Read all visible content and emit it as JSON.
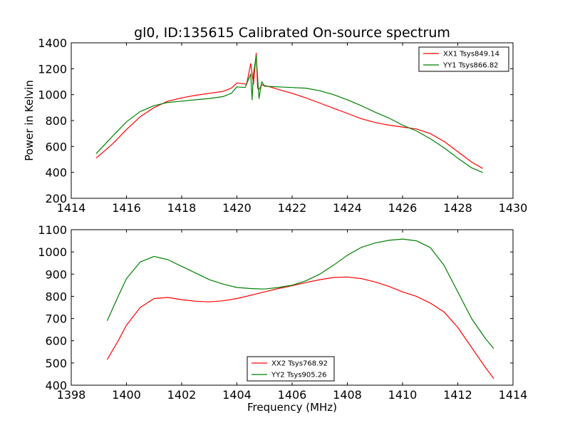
{
  "chart_data": [
    {
      "type": "line",
      "title": "gl0, ID:135615 Calibrated On-source spectrum",
      "xlabel": "",
      "ylabel": "Power in Kelvin",
      "xlim": [
        1414,
        1430
      ],
      "ylim": [
        200,
        1400
      ],
      "xticks": [
        1414,
        1416,
        1418,
        1420,
        1422,
        1424,
        1426,
        1428,
        1430
      ],
      "yticks": [
        200,
        400,
        600,
        800,
        1000,
        1200,
        1400
      ],
      "grid": false,
      "legend": "top-right",
      "series": [
        {
          "name": "XX1 Tsys849.14",
          "color": "#ff0000",
          "x": [
            1414.9,
            1415.5,
            1416.0,
            1416.5,
            1417.0,
            1417.5,
            1418.0,
            1418.5,
            1419.0,
            1419.5,
            1419.8,
            1420.0,
            1420.2,
            1420.35,
            1420.5,
            1420.6,
            1420.7,
            1420.75,
            1420.8,
            1420.9,
            1421.0,
            1421.2,
            1421.5,
            1422.0,
            1422.5,
            1423.0,
            1423.5,
            1424.0,
            1424.5,
            1425.0,
            1425.5,
            1426.0,
            1426.5,
            1427.0,
            1427.5,
            1428.0,
            1428.5,
            1428.9
          ],
          "values": [
            510,
            620,
            730,
            830,
            900,
            950,
            975,
            995,
            1010,
            1025,
            1050,
            1090,
            1085,
            1080,
            1240,
            1080,
            1320,
            1050,
            1040,
            1075,
            1070,
            1060,
            1040,
            1010,
            975,
            935,
            895,
            855,
            815,
            785,
            765,
            750,
            735,
            700,
            640,
            560,
            480,
            430
          ]
        },
        {
          "name": "YY1 Tsys866.82",
          "color": "#008000",
          "x": [
            1414.9,
            1415.5,
            1416.0,
            1416.5,
            1417.0,
            1417.5,
            1418.0,
            1418.5,
            1419.0,
            1419.5,
            1419.8,
            1420.0,
            1420.3,
            1420.5,
            1420.55,
            1420.6,
            1420.7,
            1420.8,
            1420.9,
            1421.0,
            1421.5,
            1422.0,
            1422.5,
            1423.0,
            1423.5,
            1424.0,
            1424.5,
            1425.0,
            1425.5,
            1426.0,
            1426.5,
            1427.0,
            1427.5,
            1428.0,
            1428.5,
            1428.9
          ],
          "values": [
            545,
            680,
            790,
            870,
            915,
            940,
            950,
            960,
            970,
            985,
            1010,
            1060,
            1055,
            1160,
            960,
            1160,
            1300,
            970,
            1100,
            1065,
            1060,
            1055,
            1050,
            1030,
            1000,
            960,
            915,
            865,
            820,
            765,
            720,
            660,
            590,
            510,
            435,
            400
          ]
        }
      ]
    },
    {
      "type": "line",
      "title": "",
      "xlabel": "Frequency (MHz)",
      "ylabel": "",
      "xlim": [
        1398,
        1414
      ],
      "ylim": [
        400,
        1100
      ],
      "xticks": [
        1398,
        1400,
        1402,
        1404,
        1406,
        1408,
        1410,
        1412,
        1414
      ],
      "yticks": [
        400,
        500,
        600,
        700,
        800,
        900,
        1000,
        1100
      ],
      "grid": false,
      "legend": "bottom-center",
      "series": [
        {
          "name": "XX2 Tsys768.92",
          "color": "#ff0000",
          "x": [
            1399.3,
            1399.7,
            1400.0,
            1400.5,
            1401.0,
            1401.5,
            1402.0,
            1402.5,
            1403.0,
            1403.5,
            1404.0,
            1404.5,
            1405.0,
            1405.5,
            1406.0,
            1406.5,
            1407.0,
            1407.5,
            1408.0,
            1408.5,
            1409.0,
            1409.5,
            1410.0,
            1410.5,
            1411.0,
            1411.5,
            1412.0,
            1412.5,
            1413.0,
            1413.3
          ],
          "values": [
            515,
            600,
            670,
            750,
            790,
            795,
            785,
            778,
            775,
            780,
            790,
            805,
            820,
            835,
            848,
            862,
            875,
            885,
            887,
            880,
            865,
            845,
            820,
            800,
            770,
            730,
            660,
            570,
            480,
            430
          ]
        },
        {
          "name": "YY2 Tsys905.26",
          "color": "#008000",
          "x": [
            1399.3,
            1399.7,
            1400.0,
            1400.5,
            1401.0,
            1401.5,
            1402.0,
            1402.5,
            1403.0,
            1403.5,
            1404.0,
            1404.5,
            1405.0,
            1405.5,
            1406.0,
            1406.5,
            1407.0,
            1407.5,
            1408.0,
            1408.5,
            1409.0,
            1409.5,
            1410.0,
            1410.5,
            1411.0,
            1411.5,
            1412.0,
            1412.5,
            1413.0,
            1413.3
          ],
          "values": [
            690,
            800,
            880,
            955,
            980,
            965,
            935,
            905,
            875,
            855,
            840,
            835,
            833,
            840,
            850,
            870,
            900,
            940,
            985,
            1020,
            1040,
            1052,
            1058,
            1050,
            1020,
            940,
            820,
            700,
            610,
            565
          ]
        }
      ]
    }
  ]
}
